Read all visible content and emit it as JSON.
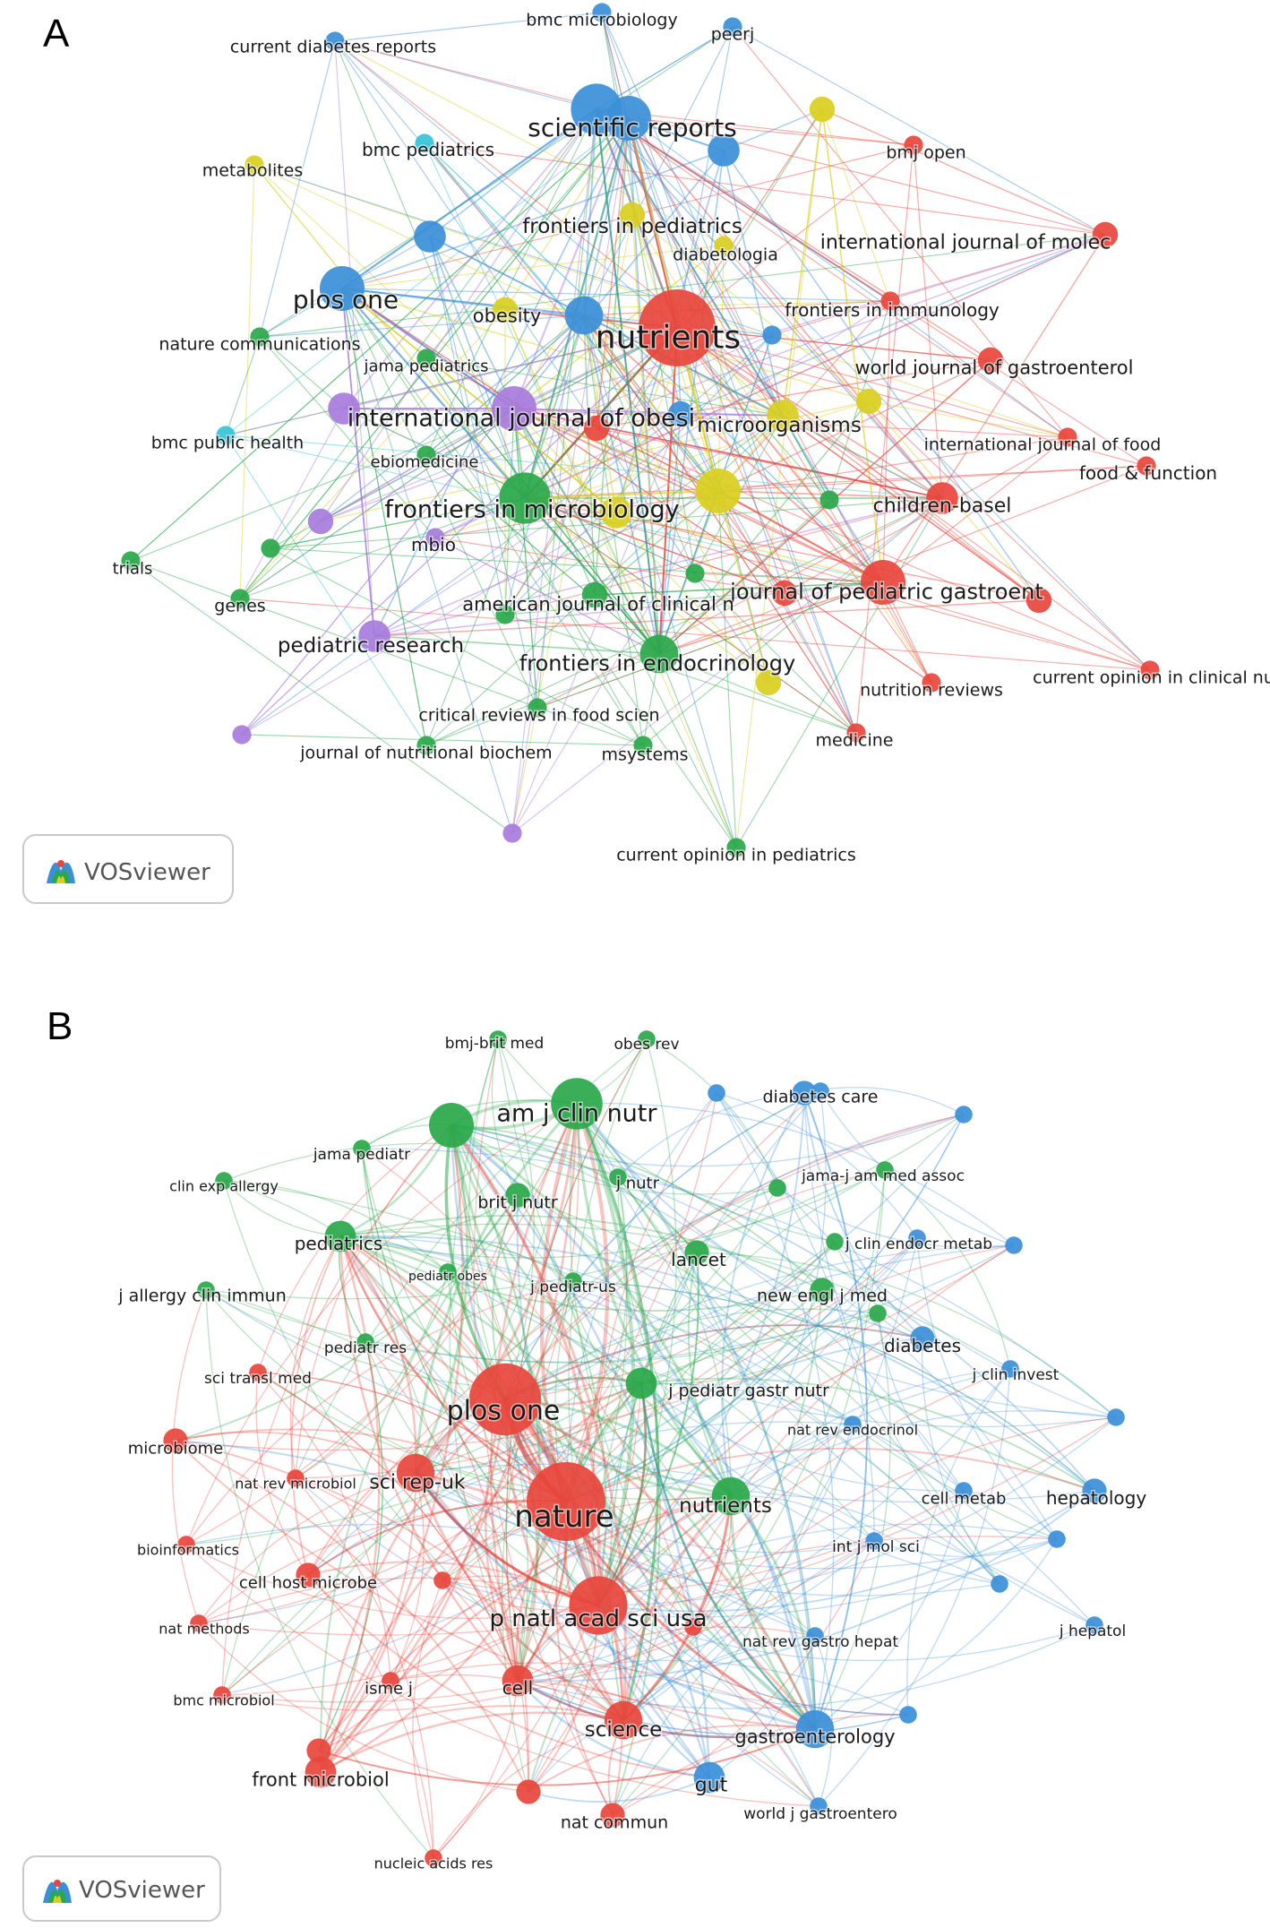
{
  "panels": [
    {
      "letter": "A",
      "badge": "VOSviewer",
      "colors": {
        "red": "#e8453c",
        "green": "#2aa84a",
        "blue": "#3b8fd9",
        "yellow": "#d9cf1f",
        "purple": "#a77bdc",
        "cyan": "#33c3d9"
      },
      "nodes": [
        {
          "label": "bmc microbiology",
          "c": "blue",
          "w": 1
        },
        {
          "label": "peerj",
          "c": "blue",
          "w": 1
        },
        {
          "label": "current diabetes reports",
          "c": "blue",
          "w": 1
        },
        {
          "label": "scientific reports",
          "c": "blue",
          "w": 5
        },
        {
          "label": "bmc pediatrics",
          "c": "cyan",
          "w": 1
        },
        {
          "label": "metabolites",
          "c": "yellow",
          "w": 1
        },
        {
          "label": "bmj open",
          "c": "red",
          "w": 1
        },
        {
          "label": "frontiers in pediatrics",
          "c": "yellow",
          "w": 2
        },
        {
          "label": "diabetologia",
          "c": "yellow",
          "w": 1
        },
        {
          "label": "international journal of molec",
          "c": "red",
          "w": 2
        },
        {
          "label": "plos one",
          "c": "blue",
          "w": 5
        },
        {
          "label": "obesity",
          "c": "yellow",
          "w": 2
        },
        {
          "label": "nutrients",
          "c": "red",
          "w": 10
        },
        {
          "label": "frontiers in immunology",
          "c": "red",
          "w": 1
        },
        {
          "label": "nature communications",
          "c": "green",
          "w": 1
        },
        {
          "label": "jama pediatrics",
          "c": "green",
          "w": 1
        },
        {
          "label": "world journal of gastroenterol",
          "c": "red",
          "w": 2
        },
        {
          "label": "international journal of obesi",
          "c": "purple",
          "w": 5
        },
        {
          "label": "microorganisms",
          "c": "yellow",
          "w": 3
        },
        {
          "label": "bmc public health",
          "c": "cyan",
          "w": 1
        },
        {
          "label": "international journal of food",
          "c": "red",
          "w": 1
        },
        {
          "label": "ebiomedicine",
          "c": "green",
          "w": 1
        },
        {
          "label": "food & function",
          "c": "red",
          "w": 1
        },
        {
          "label": "frontiers in microbiology",
          "c": "green",
          "w": 6
        },
        {
          "label": "children-basel",
          "c": "red",
          "w": 3
        },
        {
          "label": "mbio",
          "c": "purple",
          "w": 1
        },
        {
          "label": "trials",
          "c": "green",
          "w": 1
        },
        {
          "label": "journal of pediatric gastroent",
          "c": "red",
          "w": 5
        },
        {
          "label": "genes",
          "c": "green",
          "w": 1
        },
        {
          "label": "american journal of clinical n",
          "c": "green",
          "w": 2
        },
        {
          "label": "pediatric research",
          "c": "purple",
          "w": 3
        },
        {
          "label": "frontiers in endocrinology",
          "c": "green",
          "w": 4
        },
        {
          "label": "current opinion in clinical nu",
          "c": "red",
          "w": 1
        },
        {
          "label": "nutrition reviews",
          "c": "red",
          "w": 1
        },
        {
          "label": "critical reviews in food scien",
          "c": "green",
          "w": 1
        },
        {
          "label": "medicine",
          "c": "red",
          "w": 1
        },
        {
          "label": "journal of nutritional biochem",
          "c": "green",
          "w": 1
        },
        {
          "label": "msystems",
          "c": "green",
          "w": 1
        },
        {
          "label": "current opinion in pediatrics",
          "c": "green",
          "w": 1
        }
      ]
    },
    {
      "letter": "B",
      "badge": "VOSviewer",
      "colors": {
        "red": "#e8453c",
        "green": "#2aa84a",
        "blue": "#3b8fd9"
      },
      "nodes": [
        {
          "label": "bmj-brit med",
          "c": "green",
          "w": 1
        },
        {
          "label": "obes rev",
          "c": "green",
          "w": 1
        },
        {
          "label": "am j clin nutr",
          "c": "green",
          "w": 6
        },
        {
          "label": "diabetes care",
          "c": "blue",
          "w": 1
        },
        {
          "label": "jama pediatr",
          "c": "green",
          "w": 1
        },
        {
          "label": "clin exp allergy",
          "c": "green",
          "w": 1
        },
        {
          "label": "jama-j am med assoc",
          "c": "green",
          "w": 1
        },
        {
          "label": "brit j nutr",
          "c": "green",
          "w": 2
        },
        {
          "label": "j nutr",
          "c": "green",
          "w": 1
        },
        {
          "label": "j clin endocr metab",
          "c": "blue",
          "w": 1
        },
        {
          "label": "pediatrics",
          "c": "green",
          "w": 3
        },
        {
          "label": "lancet",
          "c": "green",
          "w": 2
        },
        {
          "label": "pediatr obes",
          "c": "green",
          "w": 1
        },
        {
          "label": "j pediatr-us",
          "c": "green",
          "w": 1
        },
        {
          "label": "j allergy clin immun",
          "c": "green",
          "w": 1
        },
        {
          "label": "new engl j med",
          "c": "green",
          "w": 2
        },
        {
          "label": "diabetes",
          "c": "blue",
          "w": 2
        },
        {
          "label": "pediatr res",
          "c": "green",
          "w": 1
        },
        {
          "label": "sci transl med",
          "c": "red",
          "w": 1
        },
        {
          "label": "plos one",
          "c": "red",
          "w": 9
        },
        {
          "label": "j pediatr gastr nutr",
          "c": "green",
          "w": 3
        },
        {
          "label": "j clin invest",
          "c": "blue",
          "w": 1
        },
        {
          "label": "nat rev endocrinol",
          "c": "blue",
          "w": 1
        },
        {
          "label": "microbiome",
          "c": "red",
          "w": 2
        },
        {
          "label": "nat rev microbiol",
          "c": "red",
          "w": 1
        },
        {
          "label": "sci rep-uk",
          "c": "red",
          "w": 4
        },
        {
          "label": "nature",
          "c": "red",
          "w": 10
        },
        {
          "label": "nutrients",
          "c": "green",
          "w": 4
        },
        {
          "label": "cell metab",
          "c": "blue",
          "w": 1
        },
        {
          "label": "hepatology",
          "c": "blue",
          "w": 2
        },
        {
          "label": "bioinformatics",
          "c": "red",
          "w": 1
        },
        {
          "label": "int j mol sci",
          "c": "blue",
          "w": 1
        },
        {
          "label": "cell host microbe",
          "c": "red",
          "w": 2
        },
        {
          "label": "nat methods",
          "c": "red",
          "w": 1
        },
        {
          "label": "p natl acad sci usa",
          "c": "red",
          "w": 7
        },
        {
          "label": "nat rev gastro hepat",
          "c": "blue",
          "w": 1
        },
        {
          "label": "j hepatol",
          "c": "blue",
          "w": 1
        },
        {
          "label": "isme j",
          "c": "red",
          "w": 1
        },
        {
          "label": "cell",
          "c": "red",
          "w": 3
        },
        {
          "label": "bmc microbiol",
          "c": "red",
          "w": 1
        },
        {
          "label": "science",
          "c": "red",
          "w": 4
        },
        {
          "label": "gastroenterology",
          "c": "blue",
          "w": 4
        },
        {
          "label": "front microbiol",
          "c": "red",
          "w": 3
        },
        {
          "label": "gut",
          "c": "blue",
          "w": 3
        },
        {
          "label": "nat commun",
          "c": "red",
          "w": 2
        },
        {
          "label": "world j gastroentero",
          "c": "blue",
          "w": 1
        },
        {
          "label": "nucleic acids res",
          "c": "red",
          "w": 1
        }
      ]
    }
  ]
}
